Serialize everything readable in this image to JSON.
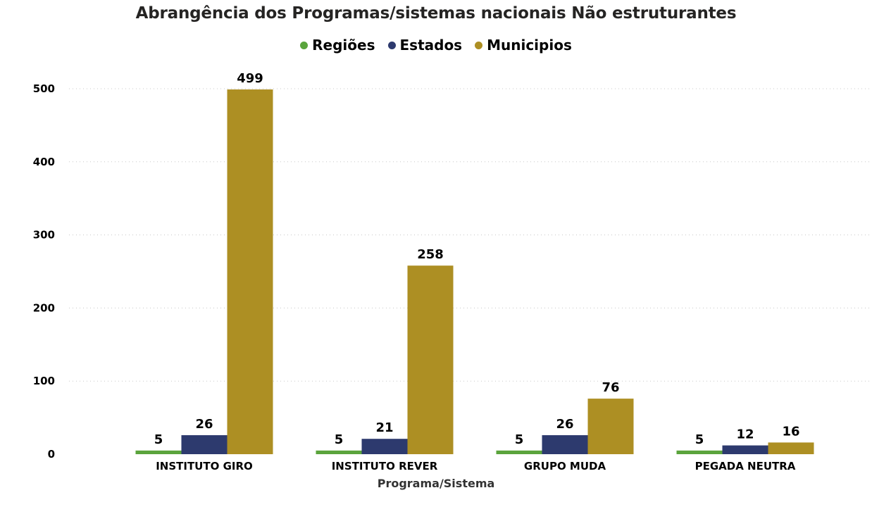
{
  "chart_data": {
    "type": "bar",
    "title": "Abrangência dos Programas/sistemas nacionais Não estruturantes",
    "xlabel": "Programa/Sistema",
    "ylabel": "",
    "categories": [
      "INSTITUTO GIRO",
      "INSTITUTO REVER",
      "GRUPO MUDA",
      "PEGADA NEUTRA"
    ],
    "series": [
      {
        "name": "Regiões",
        "color": "#5aa43c",
        "values": [
          5,
          5,
          5,
          5
        ]
      },
      {
        "name": "Estados",
        "color": "#2d3a6e",
        "values": [
          26,
          21,
          26,
          12
        ]
      },
      {
        "name": "Municipios",
        "color": "#ad8f23",
        "values": [
          499,
          258,
          76,
          16
        ]
      }
    ],
    "ylim": [
      0,
      500
    ],
    "yticks": [
      0,
      100,
      200,
      300,
      400,
      500
    ],
    "grid": true,
    "legend_position": "top-center",
    "data_labels": true
  }
}
